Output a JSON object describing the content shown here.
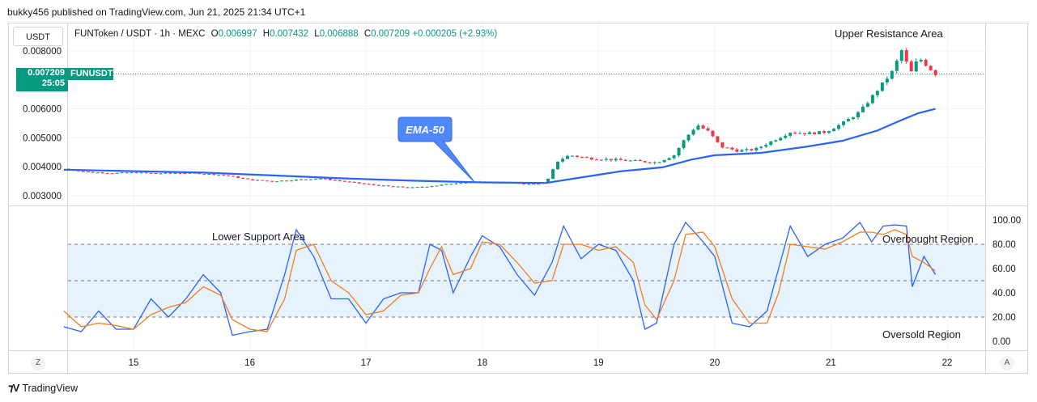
{
  "header": {
    "published": "bukky456 published on TradingView.com, Jun 21, 2025 21:34 UTC+1"
  },
  "toolbar": {
    "currency": "USDT"
  },
  "legend": {
    "symbol": "FUNToken / USDT · 1h · MEXC",
    "o_label": "O",
    "o_value": "0.006997",
    "h_label": "H",
    "h_value": "0.007432",
    "l_label": "L",
    "l_value": "0.006888",
    "c_label": "C",
    "c_value": "0.007209",
    "change": "+0.000205 (+2.93%)"
  },
  "price_badge": {
    "price": "0.007209",
    "countdown": "25:05",
    "ticker": "FUNUSDT"
  },
  "footer": {
    "brand": "TradingView",
    "left_button": "Z",
    "right_button": "A"
  },
  "colors": {
    "up": "#089981",
    "down": "#f23645",
    "ema": "#2962ff",
    "stoch_k": "#2962ff",
    "stoch_d": "#f57c1f",
    "band": "#e6f2fc"
  },
  "chart_data": [
    {
      "type": "candlestick",
      "title": "",
      "annotations": [
        "Upper Resistance Area",
        "EMA-50"
      ],
      "x_ticks": [
        "15",
        "16",
        "17",
        "18",
        "19",
        "20",
        "21",
        "22"
      ],
      "y_ticks": [
        "0.003000",
        "0.004000",
        "0.005000",
        "0.006000",
        "0.008000"
      ],
      "ylim": [
        0.0027,
        0.0085
      ],
      "last_price": 0.007209,
      "ohlc_summary": {
        "open": 0.006997,
        "high": 0.007432,
        "low": 0.006888,
        "close": 0.007209
      },
      "close_path": [
        [
          14.4,
          0.00393
        ],
        [
          14.6,
          0.00382
        ],
        [
          14.8,
          0.00378
        ],
        [
          15.0,
          0.0038
        ],
        [
          15.2,
          0.00377
        ],
        [
          15.4,
          0.00379
        ],
        [
          15.6,
          0.00376
        ],
        [
          15.8,
          0.0037
        ],
        [
          16.0,
          0.00355
        ],
        [
          16.2,
          0.0035
        ],
        [
          16.4,
          0.00355
        ],
        [
          16.6,
          0.0036
        ],
        [
          16.8,
          0.0035
        ],
        [
          17.0,
          0.0034
        ],
        [
          17.2,
          0.00332
        ],
        [
          17.4,
          0.00328
        ],
        [
          17.6,
          0.00335
        ],
        [
          17.8,
          0.00345
        ],
        [
          18.0,
          0.00348
        ],
        [
          18.2,
          0.00346
        ],
        [
          18.4,
          0.0034
        ],
        [
          18.55,
          0.00345
        ],
        [
          18.65,
          0.0042
        ],
        [
          18.75,
          0.0044
        ],
        [
          18.9,
          0.0043
        ],
        [
          19.1,
          0.00425
        ],
        [
          19.3,
          0.0042
        ],
        [
          19.5,
          0.00415
        ],
        [
          19.65,
          0.0044
        ],
        [
          19.75,
          0.005
        ],
        [
          19.85,
          0.00545
        ],
        [
          19.95,
          0.0052
        ],
        [
          20.05,
          0.0047
        ],
        [
          20.2,
          0.00455
        ],
        [
          20.35,
          0.0046
        ],
        [
          20.45,
          0.0048
        ],
        [
          20.55,
          0.005
        ],
        [
          20.65,
          0.0052
        ],
        [
          20.8,
          0.00515
        ],
        [
          20.95,
          0.0052
        ],
        [
          21.1,
          0.0055
        ],
        [
          21.25,
          0.0059
        ],
        [
          21.35,
          0.0064
        ],
        [
          21.45,
          0.0069
        ],
        [
          21.55,
          0.0074
        ],
        [
          21.6,
          0.0081
        ],
        [
          21.65,
          0.0076
        ],
        [
          21.7,
          0.0072
        ],
        [
          21.75,
          0.0078
        ],
        [
          21.8,
          0.0076
        ],
        [
          21.85,
          0.0074
        ],
        [
          21.9,
          0.007209
        ]
      ],
      "ema_50": [
        [
          14.4,
          0.0039
        ],
        [
          15.0,
          0.00385
        ],
        [
          15.6,
          0.0038
        ],
        [
          16.2,
          0.0037
        ],
        [
          16.8,
          0.0036
        ],
        [
          17.4,
          0.00352
        ],
        [
          18.0,
          0.00346
        ],
        [
          18.55,
          0.00344
        ],
        [
          18.8,
          0.0036
        ],
        [
          19.2,
          0.00385
        ],
        [
          19.55,
          0.00398
        ],
        [
          19.8,
          0.00425
        ],
        [
          20.0,
          0.0044
        ],
        [
          20.4,
          0.00448
        ],
        [
          20.8,
          0.0047
        ],
        [
          21.1,
          0.0049
        ],
        [
          21.4,
          0.00525
        ],
        [
          21.6,
          0.0056
        ],
        [
          21.75,
          0.00585
        ],
        [
          21.9,
          0.006
        ]
      ]
    },
    {
      "type": "line",
      "title": "",
      "annotations": [
        "Lower Support Area",
        "Overbought Region",
        "Oversold Region"
      ],
      "y_ticks": [
        "100.00",
        "80.00",
        "60.00",
        "40.00",
        "20.00",
        "0.00"
      ],
      "ylim": [
        -2,
        105
      ],
      "bands": [
        20,
        50,
        80
      ],
      "series": [
        {
          "key": "k",
          "points": [
            [
              14.4,
              12
            ],
            [
              14.55,
              8
            ],
            [
              14.7,
              25
            ],
            [
              14.85,
              10
            ],
            [
              15.0,
              10
            ],
            [
              15.15,
              35
            ],
            [
              15.3,
              20
            ],
            [
              15.45,
              35
            ],
            [
              15.6,
              55
            ],
            [
              15.75,
              40
            ],
            [
              15.85,
              5
            ],
            [
              16.0,
              8
            ],
            [
              16.15,
              10
            ],
            [
              16.3,
              55
            ],
            [
              16.4,
              92
            ],
            [
              16.55,
              70
            ],
            [
              16.7,
              35
            ],
            [
              16.85,
              35
            ],
            [
              17.0,
              15
            ],
            [
              17.15,
              35
            ],
            [
              17.3,
              40
            ],
            [
              17.45,
              40
            ],
            [
              17.55,
              80
            ],
            [
              17.65,
              75
            ],
            [
              17.75,
              40
            ],
            [
              17.9,
              70
            ],
            [
              18.0,
              87
            ],
            [
              18.15,
              78
            ],
            [
              18.3,
              55
            ],
            [
              18.45,
              38
            ],
            [
              18.6,
              65
            ],
            [
              18.7,
              95
            ],
            [
              18.85,
              68
            ],
            [
              19.0,
              80
            ],
            [
              19.15,
              75
            ],
            [
              19.3,
              50
            ],
            [
              19.4,
              10
            ],
            [
              19.5,
              15
            ],
            [
              19.65,
              80
            ],
            [
              19.75,
              98
            ],
            [
              19.9,
              82
            ],
            [
              20.0,
              70
            ],
            [
              20.15,
              15
            ],
            [
              20.3,
              12
            ],
            [
              20.45,
              25
            ],
            [
              20.55,
              60
            ],
            [
              20.65,
              95
            ],
            [
              20.8,
              70
            ],
            [
              20.95,
              80
            ],
            [
              21.1,
              85
            ],
            [
              21.25,
              98
            ],
            [
              21.35,
              82
            ],
            [
              21.45,
              95
            ],
            [
              21.55,
              96
            ],
            [
              21.65,
              95
            ],
            [
              21.7,
              45
            ],
            [
              21.8,
              70
            ],
            [
              21.9,
              55
            ]
          ]
        },
        {
          "key": "d",
          "points": [
            [
              14.4,
              25
            ],
            [
              14.55,
              12
            ],
            [
              14.7,
              15
            ],
            [
              14.85,
              13
            ],
            [
              15.0,
              10
            ],
            [
              15.15,
              22
            ],
            [
              15.3,
              28
            ],
            [
              15.45,
              32
            ],
            [
              15.6,
              45
            ],
            [
              15.75,
              38
            ],
            [
              15.85,
              18
            ],
            [
              16.0,
              10
            ],
            [
              16.15,
              8
            ],
            [
              16.3,
              35
            ],
            [
              16.4,
              75
            ],
            [
              16.55,
              80
            ],
            [
              16.7,
              50
            ],
            [
              16.85,
              40
            ],
            [
              17.0,
              22
            ],
            [
              17.15,
              25
            ],
            [
              17.3,
              38
            ],
            [
              17.45,
              40
            ],
            [
              17.55,
              60
            ],
            [
              17.65,
              78
            ],
            [
              17.75,
              55
            ],
            [
              17.9,
              60
            ],
            [
              18.0,
              82
            ],
            [
              18.15,
              80
            ],
            [
              18.3,
              65
            ],
            [
              18.45,
              48
            ],
            [
              18.6,
              50
            ],
            [
              18.7,
              80
            ],
            [
              18.85,
              80
            ],
            [
              19.0,
              75
            ],
            [
              19.15,
              78
            ],
            [
              19.3,
              65
            ],
            [
              19.4,
              30
            ],
            [
              19.5,
              18
            ],
            [
              19.65,
              50
            ],
            [
              19.75,
              88
            ],
            [
              19.9,
              90
            ],
            [
              20.0,
              78
            ],
            [
              20.15,
              35
            ],
            [
              20.3,
              15
            ],
            [
              20.45,
              15
            ],
            [
              20.55,
              40
            ],
            [
              20.65,
              80
            ],
            [
              20.8,
              78
            ],
            [
              20.95,
              76
            ],
            [
              21.1,
              82
            ],
            [
              21.25,
              90
            ],
            [
              21.35,
              90
            ],
            [
              21.45,
              88
            ],
            [
              21.55,
              92
            ],
            [
              21.65,
              88
            ],
            [
              21.7,
              70
            ],
            [
              21.8,
              65
            ],
            [
              21.9,
              58
            ]
          ]
        }
      ]
    }
  ]
}
